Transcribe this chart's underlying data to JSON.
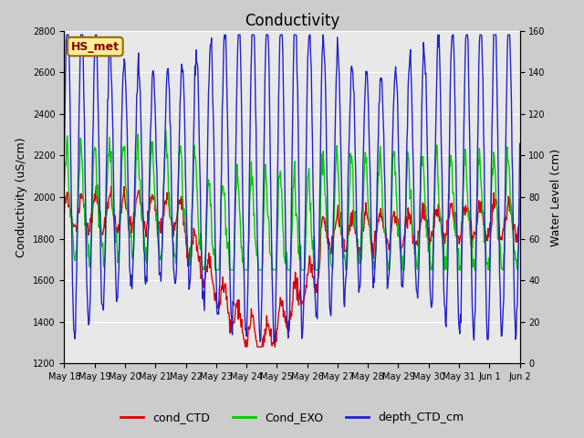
{
  "title": "Conductivity",
  "ylabel_left": "Conductivity (uS/cm)",
  "ylabel_right": "Water Level (cm)",
  "ylim_left": [
    1200,
    2800
  ],
  "ylim_right": [
    0,
    160
  ],
  "yticks_left": [
    1200,
    1400,
    1600,
    1800,
    2000,
    2200,
    2400,
    2600,
    2800
  ],
  "yticks_right": [
    0,
    20,
    40,
    60,
    80,
    100,
    120,
    140,
    160
  ],
  "xtick_labels": [
    "May 18",
    "May 19",
    "May 20",
    "May 21",
    "May 22",
    "May 23",
    "May 24",
    "May 25",
    "May 26",
    "May 27",
    "May 28",
    "May 29",
    "May 30",
    "May 31",
    "Jun 1",
    "Jun 2"
  ],
  "color_red": "#dd0000",
  "color_green": "#00cc00",
  "color_blue": "#2222cc",
  "legend_labels": [
    "cond_CTD",
    "Cond_EXO",
    "depth_CTD_cm"
  ],
  "station_label": "HS_met",
  "station_box_facecolor": "#ffee99",
  "station_box_edgecolor": "#996600",
  "station_text_color": "#880000",
  "bg_outer": "#cccccc",
  "bg_inner": "#e8e8e8",
  "grid_color": "#ffffff",
  "title_fontsize": 12,
  "label_fontsize": 9,
  "tick_fontsize": 7,
  "legend_fontsize": 9
}
